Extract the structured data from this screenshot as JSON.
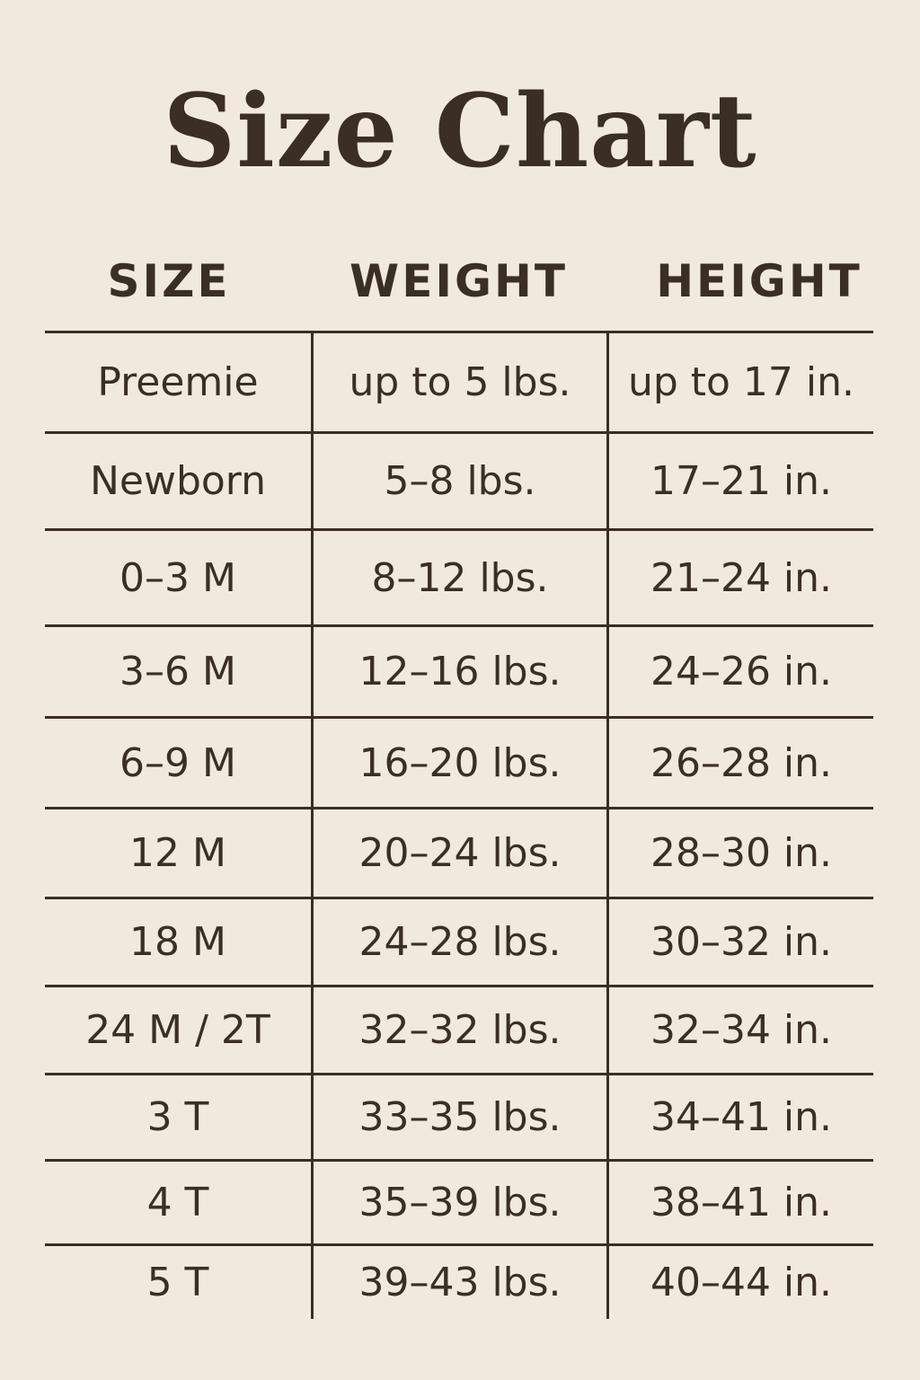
{
  "title": "Size Chart",
  "headers": [
    "SIZE",
    "WEIGHT",
    "HEIGHT"
  ],
  "rows": [
    [
      "Preemie",
      "up to 5 lbs.",
      "up to 17 in."
    ],
    [
      "Newborn",
      "5–8 lbs.",
      "17–21 in."
    ],
    [
      "0–3 M",
      "8–12 lbs.",
      "21–24 in."
    ],
    [
      "3–6 M",
      "12–16 lbs.",
      "24–26 in."
    ],
    [
      "6–9 M",
      "16–20 lbs.",
      "26–28 in."
    ],
    [
      "12 M",
      "20–24 lbs.",
      "28–30 in."
    ],
    [
      "18 M",
      "24–28 lbs.",
      "30–32 in."
    ],
    [
      "24 M / 2T",
      "32–32 lbs.",
      "32–34 in."
    ],
    [
      "3 T",
      "33–35 lbs.",
      "34–41 in."
    ],
    [
      "4 T",
      "35–39 lbs.",
      "38–41 in."
    ],
    [
      "5 T",
      "39–43 lbs.",
      "40–44 in."
    ]
  ],
  "colors": {
    "background": "#f1e9de",
    "text": "#3b2e25"
  }
}
